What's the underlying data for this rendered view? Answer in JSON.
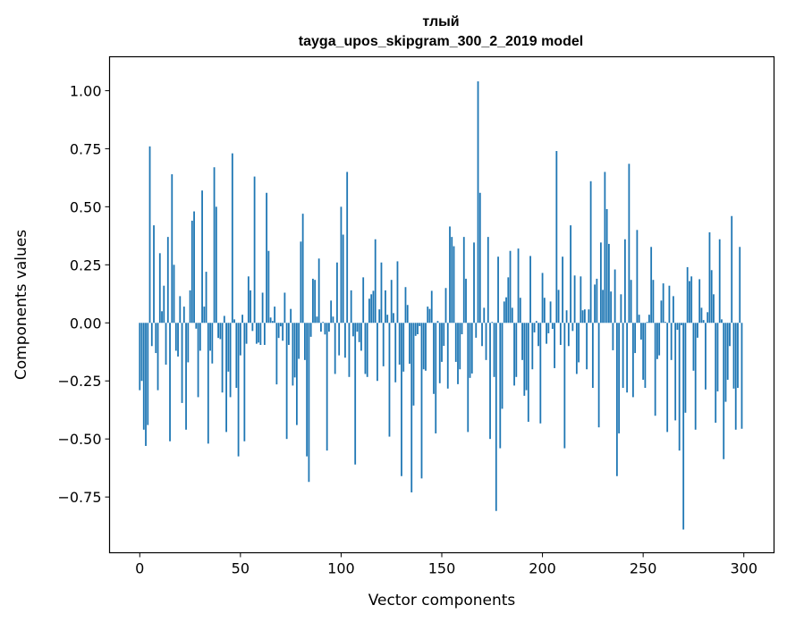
{
  "chart_data": {
    "type": "bar",
    "title_line1": "тлый",
    "title_line2": "tayga_upos_skipgram_300_2_2019 model",
    "xlabel": "Vector components",
    "ylabel": "Components values",
    "xlim": [
      -15,
      315
    ],
    "ylim": [
      -0.99,
      1.146
    ],
    "xticks": [
      0,
      50,
      100,
      150,
      200,
      250,
      300
    ],
    "xtick_labels": [
      "0",
      "50",
      "100",
      "150",
      "200",
      "250",
      "300"
    ],
    "yticks": [
      1.0,
      0.75,
      0.5,
      0.25,
      0.0,
      -0.25,
      -0.5,
      -0.75
    ],
    "ytick_labels": [
      "1.00",
      "0.75",
      "0.50",
      "0.25",
      "0.00",
      "−0.25",
      "−0.50",
      "−0.75"
    ],
    "grid": false,
    "bar_color": "#1f77b4",
    "values": [
      -0.29,
      -0.25,
      -0.46,
      -0.53,
      -0.44,
      0.76,
      -0.1,
      0.42,
      -0.13,
      -0.29,
      0.3,
      0.05,
      0.16,
      -0.18,
      0.37,
      -0.51,
      0.64,
      0.25,
      -0.12,
      -0.145,
      0.115,
      -0.345,
      0.07,
      -0.46,
      -0.17,
      0.14,
      0.44,
      0.48,
      -0.025,
      -0.32,
      -0.12,
      0.57,
      0.07,
      0.22,
      -0.52,
      -0.12,
      -0.175,
      0.67,
      0.5,
      -0.065,
      -0.07,
      -0.3,
      0.03,
      -0.47,
      -0.21,
      -0.32,
      0.73,
      0.015,
      -0.28,
      -0.575,
      -0.14,
      0.035,
      -0.51,
      -0.09,
      0.2,
      0.14,
      -0.035,
      0.63,
      -0.09,
      -0.085,
      -0.095,
      0.13,
      -0.095,
      0.56,
      0.31,
      0.023,
      0.008,
      0.07,
      -0.265,
      -0.065,
      -0.015,
      -0.077,
      0.13,
      -0.5,
      -0.095,
      0.06,
      -0.27,
      -0.235,
      -0.44,
      -0.155,
      0.35,
      0.47,
      -0.16,
      -0.575,
      -0.685,
      -0.06,
      0.19,
      0.185,
      0.027,
      0.277,
      -0.038,
      0.004,
      -0.05,
      -0.55,
      -0.038,
      0.096,
      0.027,
      -0.22,
      0.26,
      -0.14,
      0.5,
      0.38,
      -0.15,
      0.65,
      -0.233,
      0.14,
      -0.058,
      -0.61,
      -0.038,
      -0.083,
      -0.12,
      0.196,
      -0.22,
      -0.233,
      0.104,
      0.123,
      0.138,
      0.36,
      -0.25,
      0.058,
      0.26,
      -0.187,
      0.14,
      0.035,
      -0.49,
      0.185,
      0.042,
      -0.256,
      0.265,
      -0.18,
      -0.66,
      -0.21,
      0.154,
      0.077,
      -0.176,
      -0.73,
      -0.356,
      -0.056,
      -0.049,
      -0.014,
      -0.67,
      -0.2,
      -0.206,
      0.07,
      0.06,
      0.138,
      -0.306,
      -0.476,
      0.008,
      -0.26,
      -0.168,
      -0.099,
      0.15,
      -0.283,
      0.415,
      0.37,
      0.33,
      -0.168,
      -0.264,
      -0.2,
      -0.049,
      0.37,
      0.19,
      -0.47,
      -0.237,
      -0.218,
      0.346,
      -0.064,
      1.04,
      0.56,
      -0.1,
      0.065,
      -0.16,
      0.37,
      -0.5,
      0.004,
      -0.233,
      -0.81,
      0.285,
      -0.54,
      -0.37,
      0.092,
      0.11,
      0.196,
      0.31,
      0.065,
      -0.27,
      -0.233,
      0.32,
      0.108,
      -0.16,
      -0.314,
      -0.29,
      -0.426,
      0.288,
      -0.2,
      -0.041,
      0.008,
      -0.1,
      -0.433,
      0.215,
      0.108,
      -0.09,
      -0.045,
      0.092,
      -0.026,
      -0.195,
      0.74,
      0.142,
      -0.095,
      0.285,
      -0.54,
      0.054,
      -0.1,
      0.42,
      -0.035,
      0.204,
      -0.22,
      -0.17,
      0.2,
      0.054,
      0.058,
      -0.2,
      0.058,
      0.61,
      -0.28,
      0.165,
      0.19,
      -0.45,
      0.346,
      0.142,
      0.65,
      0.49,
      0.34,
      0.135,
      -0.118,
      0.23,
      -0.66,
      -0.476,
      0.123,
      -0.28,
      0.36,
      -0.3,
      0.685,
      0.185,
      -0.32,
      -0.13,
      0.4,
      0.035,
      -0.072,
      -0.245,
      -0.28,
      0.004,
      0.035,
      0.327,
      0.185,
      -0.4,
      -0.156,
      -0.14,
      0.096,
      0.17,
      0.004,
      -0.47,
      0.16,
      -0.16,
      0.115,
      -0.42,
      -0.03,
      -0.55,
      -0.01,
      -0.89,
      -0.387,
      0.24,
      0.18,
      0.2,
      -0.206,
      -0.46,
      -0.064,
      0.188,
      0.065,
      0.012,
      -0.287,
      0.046,
      0.39,
      0.227,
      0.123,
      -0.43,
      -0.295,
      0.36,
      0.015,
      -0.587,
      -0.34,
      -0.245,
      -0.1,
      0.46,
      -0.283,
      -0.46,
      -0.28,
      0.327,
      -0.456
    ]
  }
}
